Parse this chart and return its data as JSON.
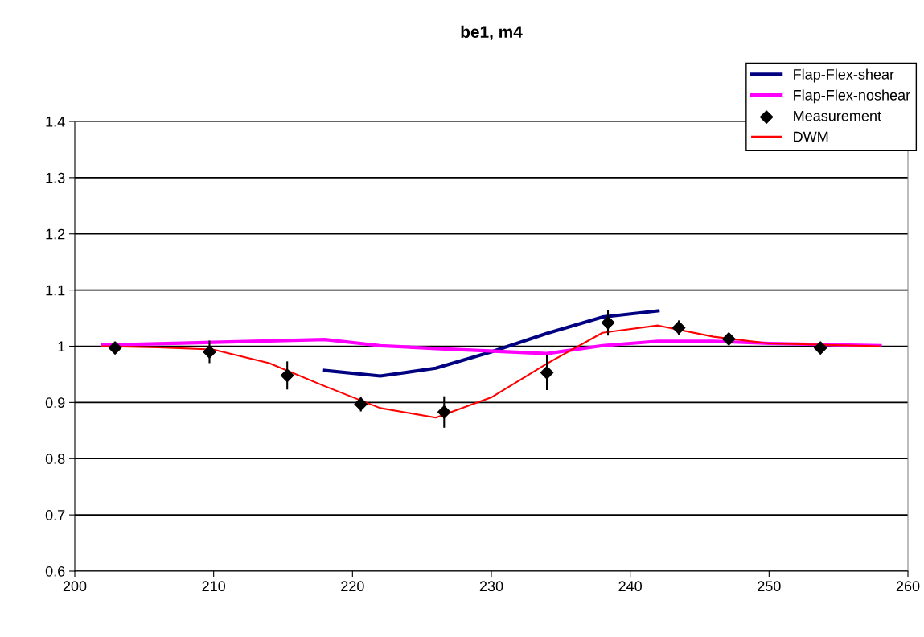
{
  "chart_data": {
    "type": "line",
    "title": "be1, m4",
    "xlim": [
      200,
      260
    ],
    "xticks": [
      200,
      210,
      220,
      230,
      240,
      250,
      260
    ],
    "ylim": [
      0.6,
      1.4
    ],
    "yticks": [
      0.6,
      0.7,
      0.8,
      0.9,
      1,
      1.1,
      1.2,
      1.3,
      1.4
    ],
    "grid": "y",
    "legend": "top right",
    "series": [
      {
        "name": "Flap-Flex-shear",
        "color": "#000080",
        "marker": "none",
        "x": [
          218,
          222,
          226,
          230,
          234,
          238,
          242
        ],
        "values": [
          0.957,
          0.947,
          0.961,
          0.99,
          1.023,
          1.052,
          1.063
        ]
      },
      {
        "name": "Flap-Flex-noshear",
        "color": "#ff00ff",
        "marker": "none",
        "x": [
          202,
          210,
          218,
          222,
          226,
          234,
          238,
          242,
          246,
          250,
          258
        ],
        "values": [
          1.002,
          1.007,
          1.012,
          1.001,
          0.996,
          0.987,
          1.001,
          1.009,
          1.009,
          1.005,
          1.001
        ]
      },
      {
        "name": "Measurement",
        "type": "scatter",
        "color": "#000000",
        "marker": "diamond",
        "x": [
          202.9,
          209.7,
          215.3,
          220.6,
          226.6,
          234.0,
          238.4,
          243.5,
          247.1,
          253.7
        ],
        "values": [
          0.997,
          0.99,
          0.948,
          0.897,
          0.883,
          0.953,
          1.042,
          1.033,
          1.013,
          0.997
        ],
        "errors": [
          null,
          0.02,
          0.025,
          0.013,
          0.028,
          0.031,
          0.023,
          0.013,
          null,
          null
        ]
      },
      {
        "name": "DWM",
        "color": "#ff0000",
        "marker": "none",
        "x": [
          202,
          206,
          210,
          214,
          218,
          222,
          226,
          230,
          234,
          238,
          242,
          246,
          250,
          258
        ],
        "values": [
          1.0,
          0.998,
          0.994,
          0.97,
          0.929,
          0.89,
          0.873,
          0.909,
          0.969,
          1.024,
          1.037,
          1.017,
          1.005,
          1.0
        ]
      }
    ]
  }
}
